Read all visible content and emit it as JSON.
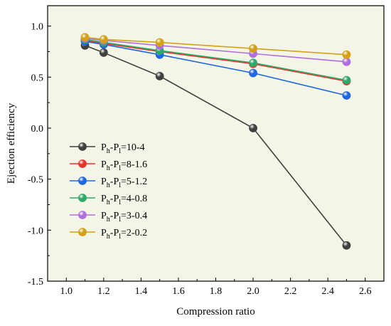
{
  "chart_data": {
    "type": "line",
    "xlabel": "Compression ratio",
    "ylabel": "Ejection efficiency",
    "xlim": [
      0.9,
      2.7
    ],
    "ylim": [
      -1.5,
      1.2
    ],
    "xticks": [
      "1.0",
      "1.2",
      "1.4",
      "1.6",
      "1.8",
      "2.0",
      "2.2",
      "2.4",
      "2.6"
    ],
    "yticks": [
      "-1.5",
      "-1.0",
      "-0.5",
      "0.0",
      "0.5",
      "1.0"
    ],
    "grid": false,
    "legend_position": "lower-left",
    "x": [
      1.1,
      1.2,
      1.5,
      2.0,
      2.5
    ],
    "series": [
      {
        "name": "Ph-Pl=10-4",
        "prefix": "P",
        "sub1": "h",
        "mid": "-P",
        "sub2": "l",
        "suffix": "=10-4",
        "color": "#404040",
        "values": [
          0.81,
          0.74,
          0.51,
          0.0,
          -1.15
        ]
      },
      {
        "name": "Ph-Pl=8-1.6",
        "prefix": "P",
        "sub1": "h",
        "mid": "-P",
        "sub2": "l",
        "suffix": "=8-1.6",
        "color": "#e8322c",
        "values": [
          0.86,
          0.83,
          0.75,
          0.63,
          0.46
        ]
      },
      {
        "name": "Ph-Pl=5-1.2",
        "prefix": "P",
        "sub1": "h",
        "mid": "-P",
        "sub2": "l",
        "suffix": "=5-1.2",
        "color": "#1f66e0",
        "values": [
          0.85,
          0.82,
          0.72,
          0.54,
          0.32
        ]
      },
      {
        "name": "Ph-Pl=4-0.8",
        "prefix": "P",
        "sub1": "h",
        "mid": "-P",
        "sub2": "l",
        "suffix": "=4-0.8",
        "color": "#2fa86a",
        "values": [
          0.87,
          0.84,
          0.76,
          0.64,
          0.47
        ]
      },
      {
        "name": "Ph-Pl=3-0.4",
        "prefix": "P",
        "sub1": "h",
        "mid": "-P",
        "sub2": "l",
        "suffix": "=3-0.4",
        "color": "#b06ee0",
        "values": [
          0.88,
          0.86,
          0.81,
          0.73,
          0.65
        ]
      },
      {
        "name": "Ph-Pl=2-0.2",
        "prefix": "P",
        "sub1": "h",
        "mid": "-P",
        "sub2": "l",
        "suffix": "=2-0.2",
        "color": "#d4a017",
        "values": [
          0.89,
          0.87,
          0.84,
          0.78,
          0.72
        ]
      }
    ],
    "background": "#f3f6e6"
  }
}
